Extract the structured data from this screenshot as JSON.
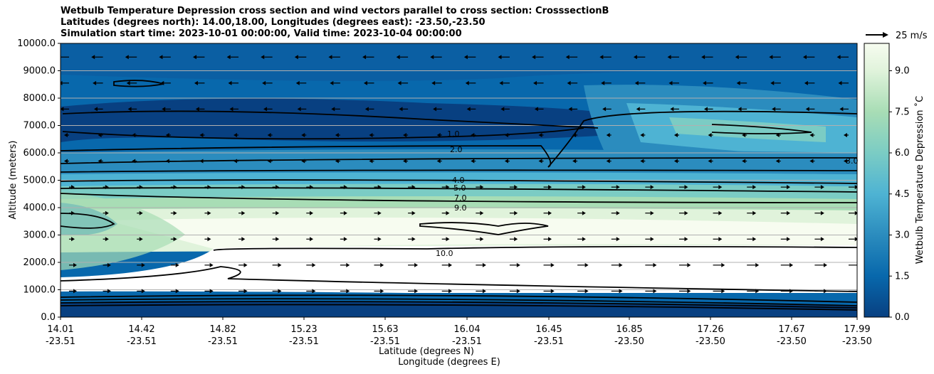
{
  "chart_data": {
    "type": "heatmap",
    "title": [
      "Wetbulb Temperature Depression cross section and wind vectors parallel to cross section: CrosssectionB",
      "Latitudes (degrees north): 14.00,18.00, Longitudes (degrees east): -23.50,-23.50",
      "Simulation start time: 2023-10-01 00:00:00, Valid time: 2023-10-04 00:00:00"
    ],
    "xlabel": "Latitude (degrees N)",
    "xlabel2": "Longitude (degrees E)",
    "ylabel": "Altitude (meters)",
    "ylim": [
      0,
      10000
    ],
    "y_ticks": [
      "0.0",
      "1000.0",
      "2000.0",
      "3000.0",
      "4000.0",
      "5000.0",
      "6000.0",
      "7000.0",
      "8000.0",
      "9000.0",
      "10000.0"
    ],
    "x_ticks": [
      {
        "lat": "14.01",
        "lon": "-23.51"
      },
      {
        "lat": "14.42",
        "lon": "-23.51"
      },
      {
        "lat": "14.82",
        "lon": "-23.51"
      },
      {
        "lat": "15.23",
        "lon": "-23.51"
      },
      {
        "lat": "15.63",
        "lon": "-23.51"
      },
      {
        "lat": "16.04",
        "lon": "-23.51"
      },
      {
        "lat": "16.45",
        "lon": "-23.51"
      },
      {
        "lat": "16.85",
        "lon": "-23.50"
      },
      {
        "lat": "17.26",
        "lon": "-23.50"
      },
      {
        "lat": "17.67",
        "lon": "-23.50"
      },
      {
        "lat": "17.99",
        "lon": "-23.50"
      }
    ],
    "grid": "horizontal",
    "colorbar": {
      "label": "Wetbulb Temperature Depression ˚C",
      "range": [
        0,
        10
      ],
      "ticks": [
        "0.0",
        "1.5",
        "3.0",
        "4.5",
        "6.0",
        "7.5",
        "9.0"
      ],
      "colors": [
        "#084081",
        "#0a559c",
        "#0868ac",
        "#2b8cbe",
        "#4eb3d3",
        "#7bccc4",
        "#a8ddb5",
        "#ccebc5",
        "#e0f3db",
        "#f7fcf0",
        "#ffffff"
      ]
    },
    "wind_key": "25 m/s",
    "contour_labels": [
      "1.0",
      "2.0",
      "4.0",
      "5.0",
      "7.0",
      "9.0",
      "10.0",
      "3.0"
    ],
    "layers": [
      {
        "alt": [
          0,
          800
        ],
        "value": 0.5
      },
      {
        "alt": [
          800,
          2000
        ],
        "value": 9.5
      },
      {
        "alt": [
          2000,
          3500
        ],
        "value": 9.0
      },
      {
        "alt": [
          3500,
          4200
        ],
        "value": 8.0
      },
      {
        "alt": [
          4200,
          5000
        ],
        "value": 6.5
      },
      {
        "alt": [
          5000,
          6000
        ],
        "value": 3.5
      },
      {
        "alt": [
          6000,
          7500
        ],
        "value": 1.0
      },
      {
        "alt": [
          7500,
          10000
        ],
        "value": 1.5
      }
    ]
  }
}
